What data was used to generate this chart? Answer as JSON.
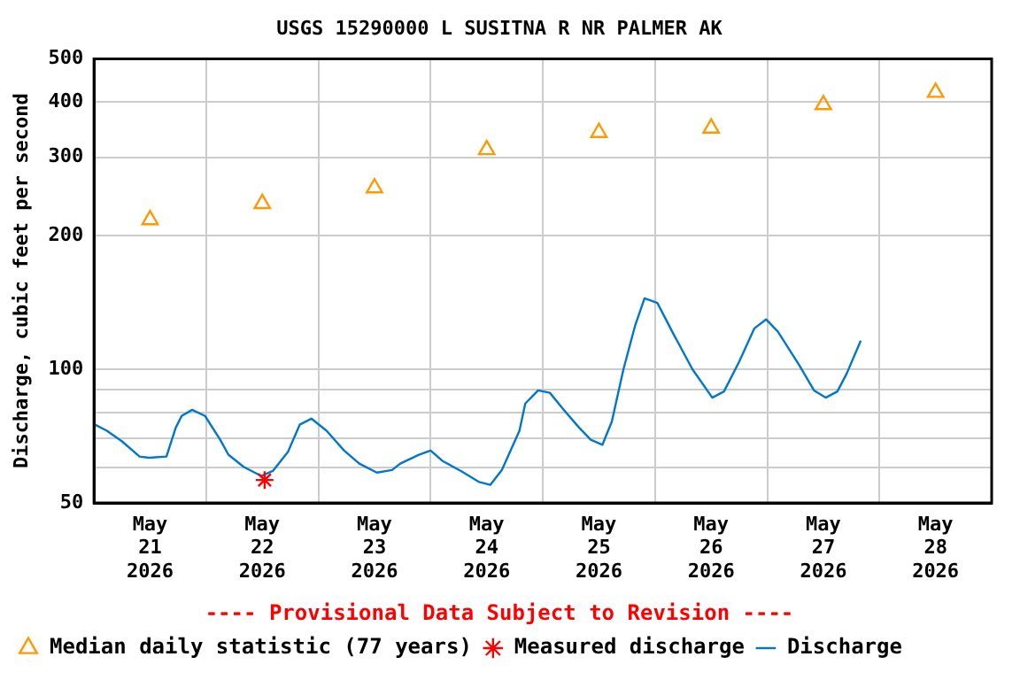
{
  "chart_data": {
    "type": "line",
    "title": "USGS 15290000 L SUSITNA R NR PALMER AK",
    "ylabel": "Discharge, cubic feet per second",
    "annotations": [
      "---- Provisional Data Subject to Revision ----"
    ],
    "log": true,
    "grid": true,
    "legend": "bottom",
    "xlim": [
      "2026-05-21T00:00",
      "2026-05-29T00:00"
    ],
    "xticks": [
      {
        "value": "2026-05-21T00:00",
        "label": null
      },
      {
        "value": "2026-05-21T12:00",
        "label": "May\n21\n2026"
      },
      {
        "value": "2026-05-22T00:00",
        "label": null
      },
      {
        "value": "2026-05-22T12:00",
        "label": "May\n22\n2026"
      },
      {
        "value": "2026-05-23T00:00",
        "label": null
      },
      {
        "value": "2026-05-23T12:00",
        "label": "May\n23\n2026"
      },
      {
        "value": "2026-05-24T00:00",
        "label": null
      },
      {
        "value": "2026-05-24T12:00",
        "label": "May\n24\n2026"
      },
      {
        "value": "2026-05-25T00:00",
        "label": null
      },
      {
        "value": "2026-05-25T12:00",
        "label": "May\n25\n2026"
      },
      {
        "value": "2026-05-26T00:00",
        "label": null
      },
      {
        "value": "2026-05-26T12:00",
        "label": "May\n26\n2026"
      },
      {
        "value": "2026-05-27T00:00",
        "label": null
      },
      {
        "value": "2026-05-27T12:00",
        "label": "May\n27\n2026"
      },
      {
        "value": "2026-05-28T00:00",
        "label": null
      },
      {
        "value": "2026-05-28T12:00",
        "label": "May\n28\n2026"
      },
      {
        "value": "2026-05-29T00:00",
        "label": null
      }
    ],
    "ylim": [
      50,
      500
    ],
    "yticks": [
      50,
      {
        "value": 60,
        "label": null
      },
      {
        "value": 70,
        "label": null
      },
      {
        "value": 80,
        "label": null
      },
      {
        "value": 90,
        "label": null
      },
      100,
      200,
      300,
      400,
      500
    ],
    "series": [
      {
        "name": "Median daily statistic (77 years)",
        "type": "scatter",
        "marker": "triangle",
        "color": "#ff9900",
        "x": [
          "2026-05-21T12:00",
          "2026-05-22T12:00",
          "2026-05-23T12:00",
          "2026-05-24T12:00",
          "2026-05-25T12:00",
          "2026-05-26T12:00",
          "2026-05-27T12:00",
          "2026-05-28T12:00"
        ],
        "values": [
          217,
          236,
          256,
          312,
          341,
          349,
          394,
          420
        ]
      },
      {
        "name": "Measured discharge",
        "type": "scatter",
        "marker": "cross",
        "color": "#ff0000",
        "x": [
          "2026-05-22T12:30"
        ],
        "values": [
          56.3
        ]
      },
      {
        "name": "Discharge",
        "marker": "none",
        "color": "#0077cc",
        "x": [
          "2026-05-21T00:15",
          "2026-05-21T02:45",
          "2026-05-21T06:00",
          "2026-05-21T09:45",
          "2026-05-21T11:45",
          "2026-05-21T15:30",
          "2026-05-21T17:30",
          "2026-05-21T18:45",
          "2026-05-21T21:00",
          "2026-05-21T23:45",
          "2026-05-22T03:00",
          "2026-05-22T04:45",
          "2026-05-22T08:00",
          "2026-05-22T11:45",
          "2026-05-22T14:15",
          "2026-05-22T17:30",
          "2026-05-22T20:00",
          "2026-05-22T22:30",
          "2026-05-23T01:45",
          "2026-05-23T05:30",
          "2026-05-23T08:45",
          "2026-05-23T12:30",
          "2026-05-23T15:45",
          "2026-05-23T17:30",
          "2026-05-23T21:30",
          "2026-05-24T00:00",
          "2026-05-24T02:30",
          "2026-05-24T06:30",
          "2026-05-24T10:15",
          "2026-05-24T12:45",
          "2026-05-24T15:15",
          "2026-05-24T19:00",
          "2026-05-24T20:15",
          "2026-05-24T23:00",
          "2026-05-25T01:30",
          "2026-05-25T04:30",
          "2026-05-25T07:45",
          "2026-05-25T10:15",
          "2026-05-25T12:45",
          "2026-05-25T14:45",
          "2026-05-25T17:15",
          "2026-05-25T19:45",
          "2026-05-25T21:45",
          "2026-05-26T00:30",
          "2026-05-26T04:00",
          "2026-05-26T08:00",
          "2026-05-26T12:15",
          "2026-05-26T14:45",
          "2026-05-26T18:00",
          "2026-05-26T21:15",
          "2026-05-26T23:45",
          "2026-05-27T02:15",
          "2026-05-27T06:45",
          "2026-05-27T10:00",
          "2026-05-27T12:30",
          "2026-05-27T15:00",
          "2026-05-27T17:00",
          "2026-05-27T20:00"
        ],
        "values": [
          75,
          72.7,
          68.8,
          63.6,
          63.2,
          63.6,
          73.9,
          78.5,
          81,
          78.5,
          69.4,
          64.2,
          60.3,
          57.5,
          59,
          65.2,
          75,
          77.4,
          72.7,
          65.6,
          61.3,
          58.5,
          59.3,
          61.3,
          64.2,
          65.6,
          62.2,
          59,
          55.8,
          54.9,
          59.3,
          72.7,
          83.7,
          89.6,
          88.5,
          81,
          73.9,
          69.4,
          67.6,
          76.2,
          100,
          125.5,
          144.4,
          141,
          119.7,
          100,
          86.3,
          89.1,
          104,
          123.6,
          129.5,
          121.6,
          102.5,
          89.6,
          86.3,
          89.1,
          97.8,
          116
        ]
      }
    ]
  }
}
